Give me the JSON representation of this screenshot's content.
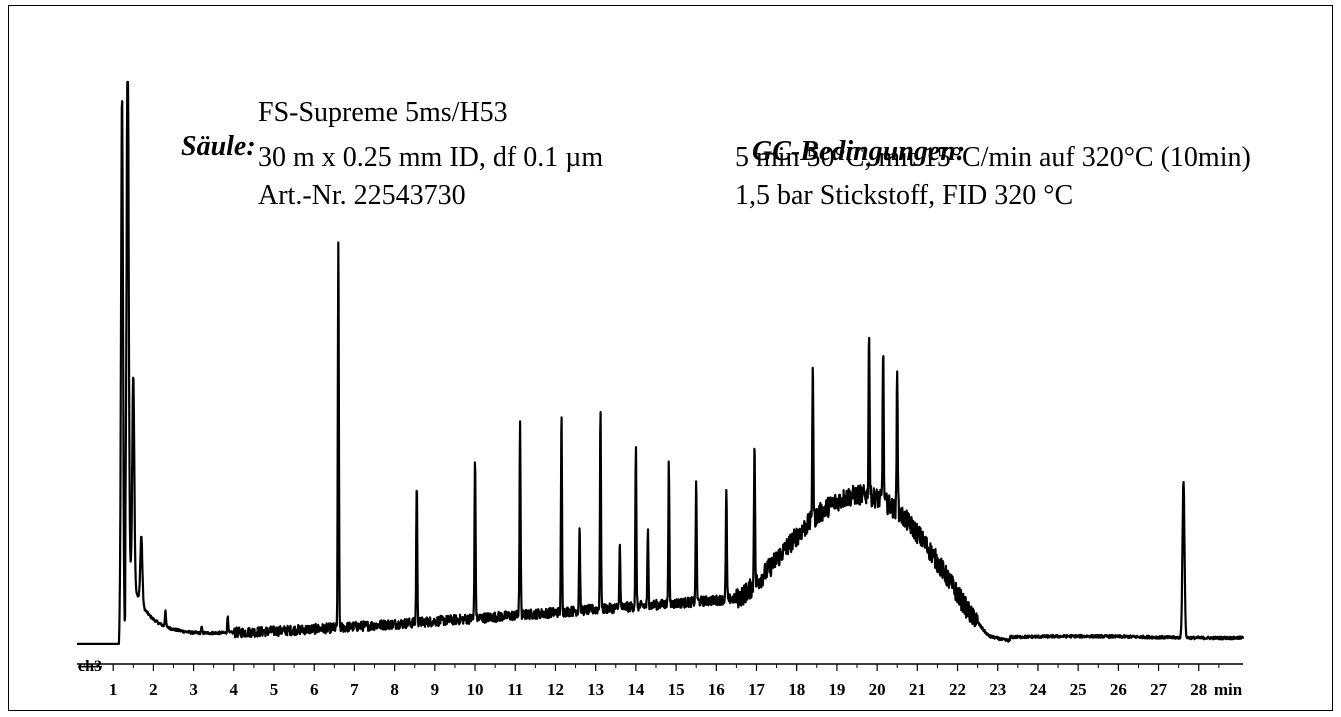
{
  "column_info": {
    "header": "Säule:",
    "lines": [
      "FS-Supreme 5ms/H53",
      "30 m x 0.25 mm ID, df 0.1 µm",
      "Art.-Nr. 22543730"
    ]
  },
  "gc_conditions": {
    "header": "GC-Bedingungen:",
    "lines": [
      "5 min 50°C, mit 15°C/min auf 320°C (10min)",
      "1,5 bar Stickstoff, FID 320 °C"
    ]
  },
  "chart_data": {
    "type": "line",
    "title": "",
    "xlabel": "min",
    "ylabel": "",
    "channel_label": "ch3",
    "xlim": [
      0.1,
      29.1
    ],
    "ylim": [
      0,
      100
    ],
    "grid": false,
    "x_ticks": [
      1,
      2,
      3,
      4,
      5,
      6,
      7,
      8,
      9,
      10,
      11,
      12,
      13,
      14,
      15,
      16,
      17,
      18,
      19,
      20,
      21,
      22,
      23,
      24,
      25,
      26,
      27,
      28
    ],
    "series": [
      {
        "baseline": 0.8,
        "peaks": [
          {
            "x": 1.22,
            "y": 100
          },
          {
            "x": 1.36,
            "y": 100
          },
          {
            "x": 1.5,
            "y": 40
          },
          {
            "x": 1.7,
            "y": 15
          },
          {
            "x": 2.3,
            "y": 6
          },
          {
            "x": 3.2,
            "y": 4
          },
          {
            "x": 3.85,
            "y": 6
          },
          {
            "x": 6.6,
            "y": 72
          },
          {
            "x": 8.55,
            "y": 28
          },
          {
            "x": 10.0,
            "y": 32
          },
          {
            "x": 11.12,
            "y": 38
          },
          {
            "x": 12.15,
            "y": 38
          },
          {
            "x": 12.6,
            "y": 18
          },
          {
            "x": 13.12,
            "y": 38
          },
          {
            "x": 13.6,
            "y": 14
          },
          {
            "x": 14.0,
            "y": 31
          },
          {
            "x": 14.3,
            "y": 16
          },
          {
            "x": 14.82,
            "y": 28
          },
          {
            "x": 15.5,
            "y": 24
          },
          {
            "x": 16.25,
            "y": 23
          },
          {
            "x": 16.95,
            "y": 29
          },
          {
            "x": 18.4,
            "y": 31
          },
          {
            "x": 19.8,
            "y": 33
          },
          {
            "x": 20.15,
            "y": 31
          },
          {
            "x": 20.5,
            "y": 29
          },
          {
            "x": 27.62,
            "y": 31
          }
        ],
        "hump": {
          "start": 16.5,
          "center": 19.7,
          "end": 22.8,
          "height": 24
        }
      }
    ]
  }
}
